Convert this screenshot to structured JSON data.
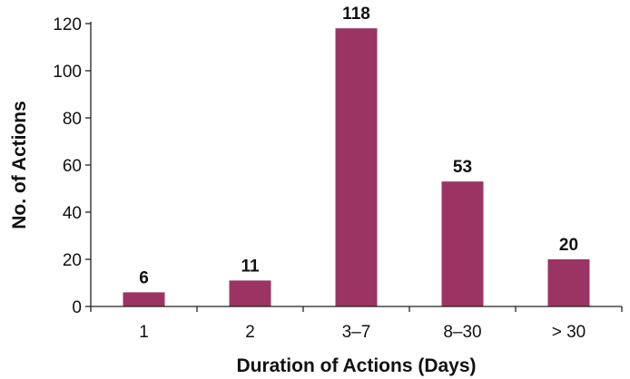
{
  "chart_data": {
    "type": "bar",
    "categories": [
      "1",
      "2",
      "3–7",
      "8–30",
      "> 30"
    ],
    "values": [
      6,
      11,
      118,
      53,
      20
    ],
    "data_labels": [
      "6",
      "11",
      "118",
      "53",
      "20"
    ],
    "xlabel": "Duration of Actions (Days)",
    "ylabel": "No. of Actions",
    "ylim": [
      0,
      120
    ],
    "yticks": [
      "0",
      "20",
      "40",
      "60",
      "80",
      "100",
      "120"
    ],
    "bar_color": "#9b3463",
    "grid": false,
    "legend": "none"
  }
}
